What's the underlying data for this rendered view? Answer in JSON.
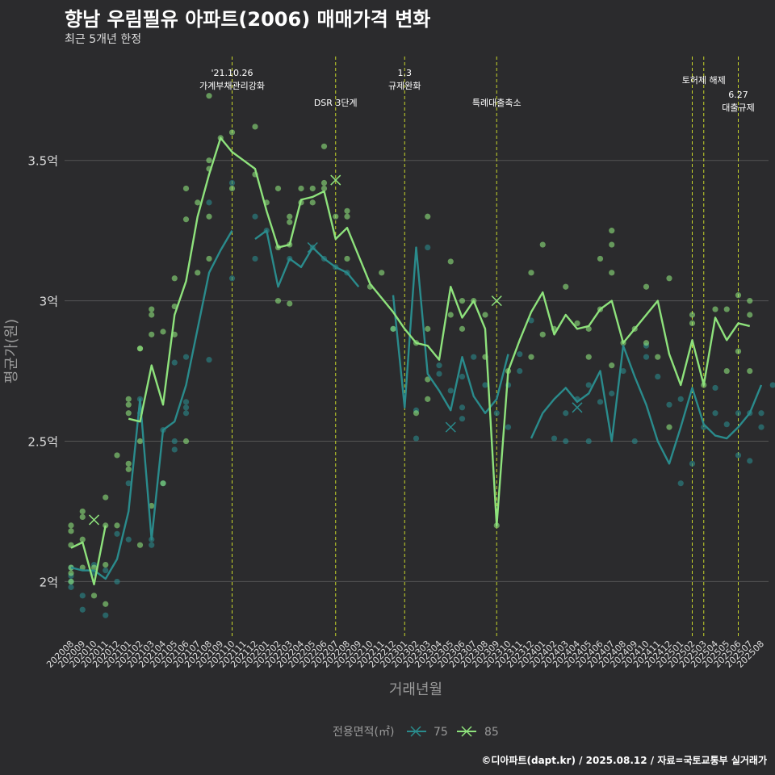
{
  "title": "향남 우림필유 아파트(2006) 매매가격 변화",
  "subtitle": "최근 5개년 한정",
  "caption": "©디아파트(dapt.kr) / 2025.08.12 / 자료=국토교통부 실거래가",
  "colors": {
    "background": "#2b2b2d",
    "grid": "#555555",
    "s75": "#2a8b8c",
    "s85": "#8ee27c",
    "event": "#c8d62a"
  },
  "chart_data": {
    "type": "line",
    "xlabel": "거래년월",
    "ylabel": "평균가(원)",
    "ylim": [
      1.8,
      3.87
    ],
    "yticks": [
      2,
      2.5,
      3,
      3.5
    ],
    "ytick_labels": [
      "2억",
      "2.5억",
      "3억",
      "3.5억"
    ],
    "x": [
      "202008",
      "202009",
      "202010",
      "202011",
      "202012",
      "202101",
      "202102",
      "202103",
      "202104",
      "202105",
      "202106",
      "202107",
      "202108",
      "202109",
      "202110",
      "202111",
      "202112",
      "202201",
      "202202",
      "202203",
      "202204",
      "202205",
      "202206",
      "202207",
      "202208",
      "202209",
      "202210",
      "202211",
      "202212",
      "202301",
      "202302",
      "202303",
      "202304",
      "202305",
      "202306",
      "202307",
      "202308",
      "202309",
      "202310",
      "202311",
      "202312",
      "202401",
      "202402",
      "202403",
      "202404",
      "202405",
      "202406",
      "202407",
      "202408",
      "202409",
      "202410",
      "202411",
      "202412",
      "202501",
      "202502",
      "202503",
      "202504",
      "202505",
      "202506",
      "202507",
      "202508"
    ],
    "legend": {
      "title": "전용면적(㎡)",
      "position": "bottom",
      "entries": [
        "75",
        "85"
      ]
    },
    "series": [
      {
        "name": "75",
        "color": "#2a8b8c",
        "values": [
          2.05,
          2.04,
          2.04,
          2.01,
          2.08,
          2.25,
          2.65,
          2.15,
          2.54,
          2.57,
          2.7,
          2.9,
          3.1,
          3.18,
          3.25,
          null,
          3.22,
          3.25,
          3.05,
          3.15,
          3.12,
          3.19,
          3.15,
          3.12,
          3.1,
          3.05,
          null,
          null,
          3.02,
          2.62,
          3.19,
          2.74,
          2.68,
          2.61,
          2.8,
          2.66,
          2.6,
          2.65,
          2.81,
          null,
          2.51,
          2.6,
          2.65,
          2.69,
          2.64,
          2.67,
          2.75,
          2.5,
          2.84,
          2.73,
          2.63,
          2.5,
          2.42,
          2.55,
          2.69,
          2.56,
          2.52,
          2.51,
          2.55,
          2.6,
          2.7
        ],
        "points": [
          [
            0,
            2.05
          ],
          [
            0,
            2.02
          ],
          [
            0,
            2.0
          ],
          [
            0,
            1.98
          ],
          [
            1,
            1.95
          ],
          [
            1,
            1.9
          ],
          [
            2,
            2.03
          ],
          [
            2,
            2.06
          ],
          [
            3,
            1.88
          ],
          [
            3,
            2.04
          ],
          [
            4,
            2.0
          ],
          [
            4,
            2.17
          ],
          [
            5,
            2.35
          ],
          [
            5,
            2.15
          ],
          [
            6,
            2.65
          ],
          [
            6,
            2.6
          ],
          [
            7,
            2.15
          ],
          [
            7,
            2.13
          ],
          [
            8,
            2.35
          ],
          [
            8,
            2.54
          ],
          [
            9,
            2.47
          ],
          [
            9,
            2.5
          ],
          [
            9,
            2.78
          ],
          [
            10,
            2.62
          ],
          [
            10,
            2.6
          ],
          [
            10,
            2.64
          ],
          [
            10,
            2.8
          ],
          [
            12,
            2.79
          ],
          [
            12,
            3.35
          ],
          [
            14,
            3.42
          ],
          [
            14,
            3.08
          ],
          [
            16,
            3.15
          ],
          [
            16,
            3.3
          ],
          [
            17,
            3.25
          ],
          [
            19,
            3.15
          ],
          [
            21,
            3.19
          ],
          [
            22,
            3.15
          ],
          [
            23,
            3.12
          ],
          [
            24,
            3.1
          ],
          [
            28,
            2.9
          ],
          [
            30,
            2.61
          ],
          [
            30,
            2.51
          ],
          [
            31,
            3.19
          ],
          [
            32,
            2.77
          ],
          [
            32,
            2.74
          ],
          [
            33,
            2.68
          ],
          [
            34,
            2.58
          ],
          [
            34,
            2.62
          ],
          [
            34,
            2.73
          ],
          [
            35,
            2.8
          ],
          [
            36,
            2.7
          ],
          [
            37,
            2.6
          ],
          [
            38,
            2.7
          ],
          [
            38,
            2.55
          ],
          [
            39,
            2.75
          ],
          [
            39,
            2.81
          ],
          [
            40,
            2.93
          ],
          [
            42,
            2.51
          ],
          [
            43,
            2.5
          ],
          [
            43,
            2.6
          ],
          [
            44,
            2.65
          ],
          [
            45,
            2.7
          ],
          [
            45,
            2.5
          ],
          [
            46,
            2.64
          ],
          [
            47,
            2.67
          ],
          [
            48,
            2.75
          ],
          [
            49,
            2.5
          ],
          [
            50,
            2.84
          ],
          [
            50,
            2.8
          ],
          [
            51,
            2.73
          ],
          [
            52,
            2.63
          ],
          [
            53,
            2.65
          ],
          [
            53,
            2.35
          ],
          [
            54,
            2.42
          ],
          [
            55,
            2.55
          ],
          [
            56,
            2.69
          ],
          [
            56,
            2.6
          ],
          [
            57,
            2.56
          ],
          [
            58,
            2.45
          ],
          [
            58,
            2.6
          ],
          [
            59,
            2.43
          ],
          [
            59,
            2.6
          ],
          [
            60,
            2.55
          ],
          [
            60,
            2.6
          ],
          [
            61,
            2.7
          ]
        ],
        "avg_markers": [
          [
            21,
            3.19
          ],
          [
            33,
            2.55
          ],
          [
            44,
            2.62
          ]
        ]
      },
      {
        "name": "85",
        "color": "#8ee27c",
        "values": [
          2.12,
          2.14,
          1.99,
          2.2,
          null,
          2.58,
          2.57,
          2.77,
          2.63,
          2.95,
          3.07,
          3.3,
          3.45,
          3.58,
          3.53,
          3.5,
          3.47,
          3.32,
          3.19,
          3.2,
          3.36,
          3.37,
          3.39,
          3.22,
          3.26,
          3.16,
          3.06,
          3.01,
          2.96,
          2.9,
          2.85,
          2.84,
          2.79,
          3.05,
          2.94,
          3.0,
          2.9,
          2.2,
          2.75,
          2.86,
          2.96,
          3.03,
          2.88,
          2.95,
          2.9,
          2.91,
          2.97,
          3.0,
          2.85,
          2.9,
          2.95,
          3.0,
          2.81,
          2.7,
          2.86,
          2.7,
          2.94,
          2.86,
          2.92,
          2.91,
          null
        ],
        "points": [
          [
            0,
            2.2
          ],
          [
            0,
            2.18
          ],
          [
            0,
            2.13
          ],
          [
            0,
            2.05
          ],
          [
            0,
            2.03
          ],
          [
            0,
            2.0
          ],
          [
            1,
            2.25
          ],
          [
            1,
            2.23
          ],
          [
            1,
            2.15
          ],
          [
            1,
            2.05
          ],
          [
            2,
            1.95
          ],
          [
            2,
            2.05
          ],
          [
            3,
            2.3
          ],
          [
            3,
            2.2
          ],
          [
            3,
            2.06
          ],
          [
            3,
            1.92
          ],
          [
            4,
            2.45
          ],
          [
            4,
            2.2
          ],
          [
            5,
            2.63
          ],
          [
            5,
            2.42
          ],
          [
            5,
            2.4
          ],
          [
            5,
            2.6
          ],
          [
            5,
            2.65
          ],
          [
            6,
            2.83
          ],
          [
            6,
            2.83
          ],
          [
            6,
            2.5
          ],
          [
            6,
            2.13
          ],
          [
            7,
            2.97
          ],
          [
            7,
            2.95
          ],
          [
            7,
            2.88
          ],
          [
            7,
            2.27
          ],
          [
            8,
            2.89
          ],
          [
            8,
            2.35
          ],
          [
            9,
            3.08
          ],
          [
            9,
            2.98
          ],
          [
            9,
            2.88
          ],
          [
            10,
            3.4
          ],
          [
            10,
            3.29
          ],
          [
            10,
            2.5
          ],
          [
            11,
            3.35
          ],
          [
            11,
            3.1
          ],
          [
            12,
            3.73
          ],
          [
            12,
            3.5
          ],
          [
            12,
            3.47
          ],
          [
            12,
            3.3
          ],
          [
            12,
            3.15
          ],
          [
            13,
            3.58
          ],
          [
            14,
            3.6
          ],
          [
            14,
            3.4
          ],
          [
            16,
            3.62
          ],
          [
            16,
            3.45
          ],
          [
            17,
            3.35
          ],
          [
            18,
            3.4
          ],
          [
            18,
            3.19
          ],
          [
            18,
            3.0
          ],
          [
            19,
            3.3
          ],
          [
            19,
            3.28
          ],
          [
            19,
            3.2
          ],
          [
            19,
            2.99
          ],
          [
            20,
            3.4
          ],
          [
            20,
            3.35
          ],
          [
            21,
            3.4
          ],
          [
            21,
            3.35
          ],
          [
            22,
            3.55
          ],
          [
            22,
            3.4
          ],
          [
            22,
            3.42
          ],
          [
            23,
            3.3
          ],
          [
            24,
            3.32
          ],
          [
            24,
            3.3
          ],
          [
            24,
            3.15
          ],
          [
            26,
            3.05
          ],
          [
            27,
            3.1
          ],
          [
            28,
            2.9
          ],
          [
            30,
            2.85
          ],
          [
            30,
            2.6
          ],
          [
            31,
            3.3
          ],
          [
            31,
            2.9
          ],
          [
            31,
            2.72
          ],
          [
            31,
            2.65
          ],
          [
            33,
            3.14
          ],
          [
            33,
            2.95
          ],
          [
            34,
            3.0
          ],
          [
            34,
            2.9
          ],
          [
            35,
            3.0
          ],
          [
            36,
            2.95
          ],
          [
            36,
            2.8
          ],
          [
            37,
            2.2
          ],
          [
            38,
            2.75
          ],
          [
            40,
            3.1
          ],
          [
            40,
            2.8
          ],
          [
            41,
            3.2
          ],
          [
            41,
            2.88
          ],
          [
            42,
            2.9
          ],
          [
            43,
            3.05
          ],
          [
            44,
            2.92
          ],
          [
            45,
            2.9
          ],
          [
            45,
            2.8
          ],
          [
            46,
            3.15
          ],
          [
            46,
            2.97
          ],
          [
            47,
            3.25
          ],
          [
            47,
            3.2
          ],
          [
            47,
            3.1
          ],
          [
            47,
            2.77
          ],
          [
            48,
            2.85
          ],
          [
            49,
            2.9
          ],
          [
            50,
            3.05
          ],
          [
            50,
            2.85
          ],
          [
            51,
            2.8
          ],
          [
            52,
            3.08
          ],
          [
            52,
            2.55
          ],
          [
            54,
            2.95
          ],
          [
            54,
            2.92
          ],
          [
            55,
            2.7
          ],
          [
            56,
            2.97
          ],
          [
            57,
            2.97
          ],
          [
            57,
            2.75
          ],
          [
            58,
            3.02
          ],
          [
            58,
            2.82
          ],
          [
            59,
            3.0
          ],
          [
            59,
            2.95
          ],
          [
            59,
            2.75
          ]
        ],
        "avg_markers": [
          [
            2,
            2.22
          ],
          [
            23,
            3.43
          ],
          [
            37,
            3.0
          ]
        ]
      }
    ],
    "events": [
      {
        "index": 14,
        "lines": [
          "'21.10.26",
          "가계부채관리강화"
        ],
        "level": 1
      },
      {
        "index": 23,
        "lines": [
          "DSR 3단계"
        ],
        "level": 2
      },
      {
        "index": 29,
        "lines": [
          "1.3",
          "규제완화"
        ],
        "level": 1
      },
      {
        "index": 37,
        "lines": [
          "특례대출축소"
        ],
        "level": 2
      },
      {
        "index": 54,
        "lines": [],
        "level": 0
      },
      {
        "index": 55,
        "lines": [
          "토허제 해제"
        ],
        "level": 1.5
      },
      {
        "index": 58,
        "lines": [
          "6.27",
          "대출규제"
        ],
        "level": 2.5
      }
    ]
  }
}
